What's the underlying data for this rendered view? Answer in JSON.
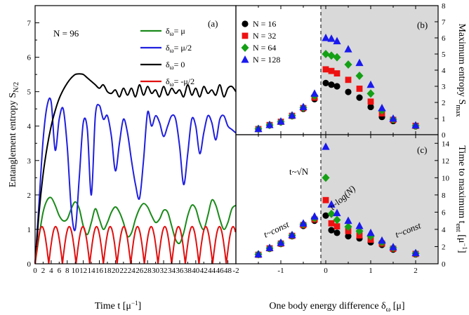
{
  "chart_data": [
    {
      "type": "line",
      "panel_label": "(a)",
      "annotation": "N = 96",
      "xlabel": "Time t [μ⁻¹]",
      "ylabel": "Entanglement entropy S_N/2",
      "xlim": [
        0,
        50
      ],
      "ylim": [
        0,
        7.5
      ],
      "xticks": [
        "0",
        "2",
        "4",
        "6",
        "8",
        "10",
        "12",
        "14",
        "16",
        "18",
        "20",
        "22",
        "24",
        "26",
        "28",
        "30",
        "32",
        "34",
        "36",
        "38",
        "40",
        "42",
        "44",
        "46",
        "48"
      ],
      "yticks": [
        "0",
        "1",
        "2",
        "3",
        "4",
        "5",
        "6",
        "7"
      ],
      "series": [
        {
          "name": "δω= μ",
          "color": "#1a8a1a",
          "x": [
            0,
            1,
            2,
            3,
            4,
            5,
            6,
            7,
            8,
            9,
            10,
            11,
            12,
            13,
            14,
            15,
            16,
            17,
            18,
            19,
            20,
            21,
            22,
            23,
            24,
            25,
            26,
            27,
            28,
            29,
            30,
            31,
            32,
            33,
            34,
            35,
            36,
            37,
            38,
            39,
            40,
            41,
            42,
            43,
            44,
            45,
            46,
            47,
            48,
            49,
            50
          ],
          "y": [
            0,
            0.8,
            1.5,
            1.85,
            1.92,
            1.7,
            1.4,
            1.25,
            1.3,
            1.6,
            1.8,
            1.6,
            1.1,
            0.85,
            1.2,
            1.6,
            1.3,
            1.0,
            1.2,
            1.5,
            1.65,
            1.5,
            1.2,
            0.8,
            0.9,
            1.3,
            1.6,
            1.75,
            1.65,
            1.4,
            1.2,
            1.3,
            1.55,
            1.5,
            1.1,
            0.7,
            0.6,
            0.9,
            1.4,
            1.7,
            1.6,
            1.2,
            1.0,
            1.4,
            1.85,
            1.7,
            1.3,
            1.0,
            1.2,
            1.6,
            1.7
          ]
        },
        {
          "name": "δω= μ/2",
          "color": "#1f1fe0",
          "x": [
            0,
            1,
            2,
            3,
            4,
            5,
            6,
            7,
            8,
            9,
            10,
            11,
            12,
            13,
            14,
            15,
            16,
            17,
            18,
            19,
            20,
            21,
            22,
            23,
            24,
            25,
            26,
            27,
            28,
            29,
            30,
            31,
            32,
            33,
            34,
            35,
            36,
            37,
            38,
            39,
            40,
            41,
            42,
            43,
            44,
            45,
            46,
            47,
            48,
            49,
            50
          ],
          "y": [
            0,
            1.8,
            3.6,
            4.6,
            4.7,
            3.3,
            4.2,
            4.5,
            3.4,
            1.6,
            1.0,
            2.5,
            4.1,
            3.9,
            2.0,
            4.3,
            4.6,
            4.2,
            4.3,
            3.7,
            2.7,
            3.5,
            4.2,
            3.8,
            3.0,
            2.3,
            1.9,
            3.0,
            4.4,
            4.0,
            4.3,
            4.1,
            3.7,
            4.0,
            4.3,
            4.2,
            3.4,
            2.3,
            3.2,
            4.2,
            4.0,
            3.2,
            3.8,
            4.3,
            4.1,
            3.6,
            4.2,
            4.3,
            4.0,
            3.9,
            3.8
          ]
        },
        {
          "name": "δω= 0",
          "color": "#000000",
          "x": [
            0,
            1,
            2,
            3,
            4,
            5,
            6,
            7,
            8,
            9,
            10,
            11,
            12,
            13,
            14,
            15,
            16,
            17,
            18,
            19,
            20,
            21,
            22,
            23,
            24,
            25,
            26,
            27,
            28,
            29,
            30,
            31,
            32,
            33,
            34,
            35,
            36,
            37,
            38,
            39,
            40,
            41,
            42,
            43,
            44,
            45,
            46,
            47,
            48,
            49,
            50
          ],
          "y": [
            0,
            1.5,
            2.6,
            3.4,
            4.0,
            4.45,
            4.8,
            5.05,
            5.25,
            5.4,
            5.5,
            5.52,
            5.5,
            5.4,
            5.3,
            5.2,
            5.1,
            5.2,
            5.0,
            4.95,
            5.05,
            4.85,
            5.1,
            4.9,
            5.1,
            4.85,
            5.2,
            4.9,
            5.15,
            4.95,
            5.05,
            4.85,
            5.15,
            4.9,
            5.1,
            4.95,
            5.05,
            4.85,
            5.2,
            4.9,
            5.1,
            4.85,
            5.15,
            4.95,
            5.05,
            4.9,
            5.2,
            4.85,
            5.1,
            5.15,
            5.0
          ]
        },
        {
          "name": "δω= -μ/2",
          "color": "#e01010",
          "period": 3.4,
          "amplitude": 1.08
        }
      ]
    },
    {
      "type": "scatter",
      "panel_label": "(b)",
      "ylabel": "Maximum entropy S_max",
      "xlim": [
        -2,
        2.5
      ],
      "ylim": [
        0,
        8
      ],
      "yticks": [
        "0",
        "1",
        "2",
        "3",
        "4",
        "5",
        "6",
        "7",
        "8"
      ],
      "x": [
        -1.5,
        -1.25,
        -1,
        -0.75,
        -0.5,
        -0.25,
        0,
        0.125,
        0.25,
        0.5,
        0.75,
        1,
        1.25,
        1.5,
        2
      ],
      "series": [
        {
          "name": "N = 16",
          "color": "#000000",
          "marker": "circle",
          "values": [
            0.35,
            0.58,
            0.78,
            1.15,
            1.6,
            2.2,
            3.2,
            3.1,
            3.0,
            2.65,
            2.3,
            1.72,
            1.1,
            0.85,
            0.52
          ]
        },
        {
          "name": "N = 32",
          "color": "#ee1111",
          "marker": "square",
          "values": [
            0.35,
            0.6,
            0.8,
            1.17,
            1.65,
            2.3,
            4.05,
            3.95,
            3.8,
            3.4,
            2.85,
            2.05,
            1.32,
            0.92,
            0.55
          ]
        },
        {
          "name": "N = 64",
          "color": "#14a014",
          "marker": "diamond",
          "values": [
            0.36,
            0.6,
            0.8,
            1.18,
            1.68,
            2.42,
            5.0,
            4.9,
            4.8,
            4.35,
            3.65,
            2.55,
            1.5,
            0.95,
            0.55
          ]
        },
        {
          "name": "N = 128",
          "color": "#1a1aee",
          "marker": "triangle",
          "values": [
            0.36,
            0.61,
            0.82,
            1.2,
            1.72,
            2.55,
            6.0,
            5.95,
            5.8,
            5.3,
            4.45,
            3.1,
            1.65,
            1.0,
            0.58
          ]
        }
      ]
    },
    {
      "type": "scatter",
      "panel_label": "(c)",
      "xlabel": "One body energy difference δω [μ]",
      "ylabel": "Time to maximum t_ent [μ⁻¹]",
      "xlim": [
        -2,
        2.5
      ],
      "ylim": [
        0,
        15
      ],
      "xticks": [
        "-2",
        "-1",
        "0",
        "1",
        "2"
      ],
      "yticks": [
        "0",
        "2",
        "4",
        "6",
        "8",
        "10",
        "12",
        "14"
      ],
      "annotations": [
        "t~√N",
        "t~log(N)",
        "t~const",
        "t~const"
      ],
      "x": [
        -1.5,
        -1.25,
        -1,
        -0.75,
        -0.5,
        -0.25,
        0,
        0.125,
        0.25,
        0.5,
        0.75,
        1,
        1.25,
        1.5,
        2
      ],
      "series": [
        {
          "name": "N = 16",
          "color": "#000000",
          "marker": "circle",
          "values": [
            1.05,
            1.75,
            2.3,
            3.2,
            4.4,
            5.0,
            5.6,
            3.9,
            3.6,
            3.2,
            2.95,
            2.5,
            2.2,
            1.65,
            1.1
          ]
        },
        {
          "name": "N = 32",
          "color": "#ee1111",
          "marker": "square",
          "values": [
            1.05,
            1.8,
            2.35,
            3.25,
            4.5,
            5.15,
            7.4,
            4.7,
            4.35,
            3.8,
            3.3,
            2.8,
            2.35,
            1.75,
            1.15
          ]
        },
        {
          "name": "N = 64",
          "color": "#14a014",
          "marker": "diamond",
          "values": [
            1.1,
            1.8,
            2.4,
            3.3,
            4.6,
            5.3,
            10.0,
            5.8,
            5.1,
            4.3,
            3.8,
            3.2,
            2.5,
            1.85,
            1.2
          ]
        },
        {
          "name": "N = 128",
          "color": "#1a1aee",
          "marker": "triangle",
          "values": [
            1.1,
            1.85,
            2.45,
            3.35,
            4.7,
            5.5,
            13.6,
            6.9,
            5.9,
            5.0,
            4.4,
            3.6,
            2.7,
            1.95,
            1.25
          ]
        }
      ]
    }
  ]
}
